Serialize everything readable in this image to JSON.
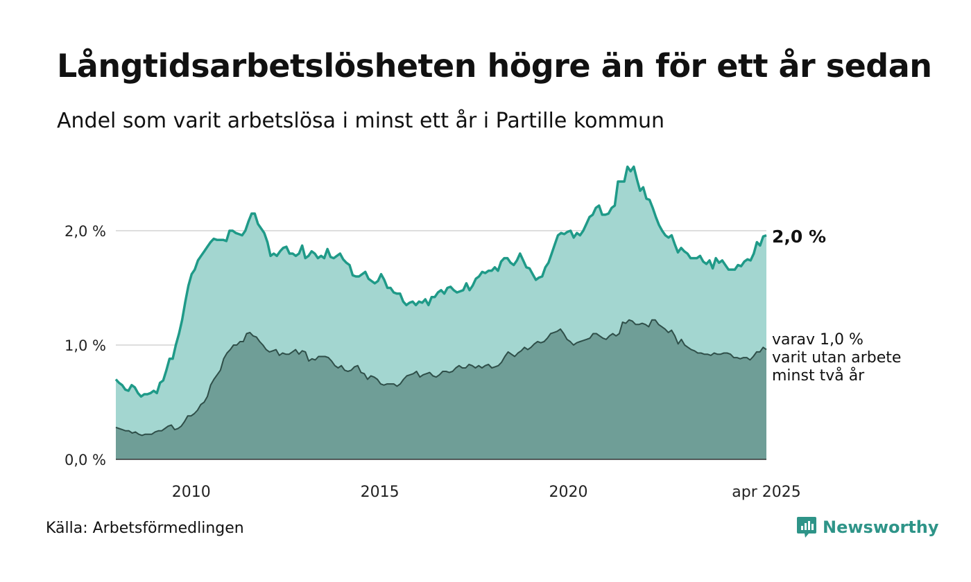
{
  "title": "Långtidsarbetslösheten högre än för ett år sedan",
  "subtitle": "Andel som varit arbetslösa i minst ett år i Partille kommun",
  "source": "Källa: Arbetsförmedlingen",
  "brand": {
    "name": "Newsworthy",
    "icon": "newsworthy-logo-icon",
    "color": "#2e9488"
  },
  "chart_data": {
    "type": "area",
    "x_start": "2008-01",
    "x_end": "2025-04",
    "frequency": "monthly",
    "ylim": [
      0,
      2.6
    ],
    "yticks": [
      0,
      1,
      2
    ],
    "ytick_labels": [
      "0,0 %",
      "1,0 %",
      "2,0 %"
    ],
    "xticks": [
      {
        "label": "2010",
        "date": "2010-01"
      },
      {
        "label": "2015",
        "date": "2015-01"
      },
      {
        "label": "2020",
        "date": "2020-01"
      },
      {
        "label": "apr 2025",
        "date": "2025-04"
      }
    ],
    "grid": "horizontal",
    "colors": {
      "line_1y": "#1f9a88",
      "fill_1y": "#a3d6d0",
      "line_2y": "#2f4f49",
      "fill_2y": "#6f9e97"
    },
    "end_labels": {
      "one_year": "2,0 %",
      "two_year": [
        "varav 1,0 %",
        "varit utan arbete",
        "minst två år"
      ]
    },
    "series": [
      {
        "values": [
          0.7,
          0.67,
          0.65,
          0.61,
          0.6,
          0.65,
          0.63,
          0.58,
          0.55,
          0.57,
          0.57,
          0.58,
          0.6,
          0.58,
          0.67,
          0.69,
          0.78,
          0.88,
          0.88,
          1.0,
          1.1,
          1.22,
          1.38,
          1.52,
          1.62,
          1.66,
          1.74,
          1.78,
          1.82,
          1.86,
          1.9,
          1.93,
          1.92,
          1.92,
          1.92,
          1.91,
          2.0,
          2.0,
          1.98,
          1.97,
          1.96,
          2.0,
          2.08,
          2.15,
          2.15,
          2.06,
          2.02,
          1.98,
          1.9,
          1.78,
          1.8,
          1.78,
          1.82,
          1.85,
          1.86,
          1.8,
          1.8,
          1.78,
          1.8,
          1.87,
          1.76,
          1.78,
          1.82,
          1.8,
          1.76,
          1.78,
          1.76,
          1.84,
          1.77,
          1.76,
          1.78,
          1.8,
          1.75,
          1.72,
          1.7,
          1.61,
          1.6,
          1.6,
          1.62,
          1.64,
          1.58,
          1.56,
          1.54,
          1.56,
          1.62,
          1.57,
          1.5,
          1.5,
          1.46,
          1.45,
          1.45,
          1.38,
          1.35,
          1.37,
          1.38,
          1.35,
          1.38,
          1.37,
          1.4,
          1.35,
          1.42,
          1.42,
          1.46,
          1.48,
          1.45,
          1.5,
          1.51,
          1.48,
          1.46,
          1.47,
          1.48,
          1.54,
          1.48,
          1.52,
          1.58,
          1.6,
          1.64,
          1.63,
          1.65,
          1.65,
          1.68,
          1.65,
          1.73,
          1.76,
          1.76,
          1.72,
          1.7,
          1.74,
          1.8,
          1.74,
          1.68,
          1.67,
          1.62,
          1.57,
          1.59,
          1.6,
          1.68,
          1.72,
          1.8,
          1.88,
          1.96,
          1.98,
          1.97,
          1.99,
          2.0,
          1.94,
          1.98,
          1.96,
          2.0,
          2.06,
          2.12,
          2.14,
          2.2,
          2.22,
          2.14,
          2.14,
          2.15,
          2.2,
          2.22,
          2.43,
          2.43,
          2.43,
          2.56,
          2.52,
          2.56,
          2.45,
          2.35,
          2.38,
          2.28,
          2.27,
          2.2,
          2.12,
          2.05,
          2.0,
          1.96,
          1.94,
          1.96,
          1.88,
          1.81,
          1.85,
          1.82,
          1.8,
          1.76,
          1.76,
          1.76,
          1.78,
          1.73,
          1.71,
          1.74,
          1.67,
          1.76,
          1.72,
          1.74,
          1.7,
          1.66,
          1.66,
          1.66,
          1.7,
          1.69,
          1.73,
          1.75,
          1.74,
          1.8,
          1.9,
          1.87,
          1.95,
          1.96
        ]
      },
      {
        "values": [
          0.28,
          0.27,
          0.26,
          0.25,
          0.25,
          0.23,
          0.24,
          0.22,
          0.21,
          0.22,
          0.22,
          0.22,
          0.24,
          0.25,
          0.25,
          0.27,
          0.29,
          0.3,
          0.26,
          0.27,
          0.29,
          0.33,
          0.38,
          0.38,
          0.4,
          0.43,
          0.48,
          0.5,
          0.55,
          0.65,
          0.7,
          0.74,
          0.78,
          0.88,
          0.93,
          0.96,
          1.0,
          1.0,
          1.03,
          1.03,
          1.1,
          1.11,
          1.08,
          1.07,
          1.03,
          1.0,
          0.96,
          0.94,
          0.95,
          0.96,
          0.91,
          0.93,
          0.92,
          0.92,
          0.94,
          0.96,
          0.92,
          0.95,
          0.94,
          0.86,
          0.88,
          0.87,
          0.9,
          0.9,
          0.9,
          0.89,
          0.86,
          0.82,
          0.8,
          0.82,
          0.78,
          0.77,
          0.78,
          0.81,
          0.82,
          0.76,
          0.75,
          0.7,
          0.73,
          0.72,
          0.7,
          0.66,
          0.65,
          0.66,
          0.66,
          0.66,
          0.64,
          0.66,
          0.7,
          0.73,
          0.74,
          0.75,
          0.77,
          0.72,
          0.74,
          0.75,
          0.76,
          0.73,
          0.72,
          0.74,
          0.77,
          0.77,
          0.76,
          0.77,
          0.8,
          0.82,
          0.8,
          0.8,
          0.83,
          0.82,
          0.8,
          0.82,
          0.8,
          0.82,
          0.83,
          0.8,
          0.81,
          0.82,
          0.85,
          0.9,
          0.94,
          0.92,
          0.9,
          0.93,
          0.95,
          0.98,
          0.96,
          0.98,
          1.01,
          1.03,
          1.02,
          1.03,
          1.06,
          1.1,
          1.11,
          1.12,
          1.14,
          1.1,
          1.05,
          1.03,
          1.0,
          1.02,
          1.03,
          1.04,
          1.05,
          1.06,
          1.1,
          1.1,
          1.08,
          1.06,
          1.05,
          1.08,
          1.1,
          1.08,
          1.1,
          1.2,
          1.19,
          1.22,
          1.21,
          1.18,
          1.18,
          1.19,
          1.18,
          1.16,
          1.22,
          1.22,
          1.18,
          1.16,
          1.14,
          1.11,
          1.13,
          1.08,
          1.01,
          1.05,
          1.0,
          0.98,
          0.96,
          0.95,
          0.93,
          0.93,
          0.92,
          0.92,
          0.91,
          0.93,
          0.92,
          0.92,
          0.93,
          0.93,
          0.92,
          0.89,
          0.89,
          0.88,
          0.89,
          0.89,
          0.87,
          0.9,
          0.94,
          0.94,
          0.98,
          0.96
        ]
      }
    ]
  }
}
